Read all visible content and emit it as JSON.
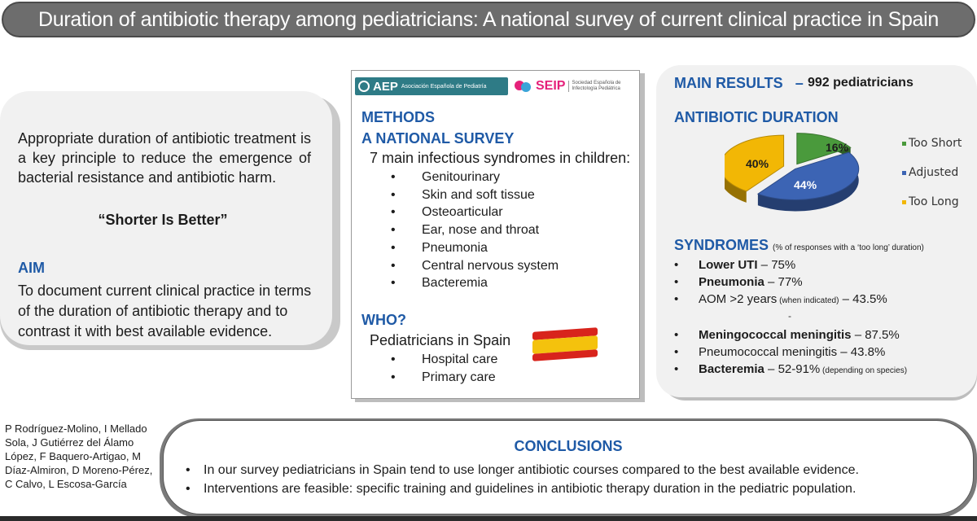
{
  "title": "Duration of antibiotic therapy among pediatricians: A national survey of current clinical practice in Spain",
  "intro": {
    "text": "Appropriate duration of antibiotic treatment is a key principle to reduce the emergence of bacterial resistance and antibiotic harm.",
    "motto": "“Shorter Is Better”",
    "aim_heading": "AIM",
    "aim_text": "To document current clinical practice in terms of the duration of antibiotic therapy and to contrast it with best available evidence."
  },
  "logos": {
    "aep_abbr": "AEP",
    "aep_name": "Asociación Española de Pediatría",
    "seip_abbr": "SEIP",
    "seip_name": "Sociedad Española de Infectología Pediátrica"
  },
  "methods": {
    "heading": "METHODS",
    "subheading": "A NATIONAL SURVEY",
    "intro": "7 main infectious syndromes in children:",
    "syndromes": [
      "Genitourinary",
      "Skin and soft tissue",
      "Osteoarticular",
      "Ear, nose and throat",
      "Pneumonia",
      "Central nervous system",
      "Bacteremia"
    ],
    "who_heading": "WHO?",
    "who_text": "Pediatricians in Spain",
    "who_items": [
      "Hospital care",
      "Primary care"
    ],
    "flag_colors": {
      "red": "#d8241c",
      "yellow": "#f4c20d"
    }
  },
  "results": {
    "heading": "MAIN RESULTS",
    "dash": "–",
    "count": "992 pediatricians",
    "duration_heading": "ANTIBIOTIC DURATION",
    "syndromes_heading": "SYNDROMES",
    "syndromes_note": "(% of responses with a ‘too long’ duration)",
    "syndromes": [
      {
        "name": "Lower UTI",
        "value": " – 75%",
        "note": "",
        "bold": true
      },
      {
        "name": "Pneumonia",
        "value": " – 77%",
        "note": "",
        "bold": true
      },
      {
        "name": "AOM >2 years",
        "value": " – 43.5%",
        "note": " (when indicated)",
        "bold": false
      }
    ],
    "separator": "-",
    "syndromes_2": [
      {
        "name": "Meningococcal meningitis",
        "value": " – 87.5%",
        "note": "",
        "bold": true
      },
      {
        "name": "Pneumococcal meningitis",
        "value": " – 43.8%",
        "note": "",
        "bold": false
      },
      {
        "name": "Bacteremia",
        "value": " – 52-91%",
        "note": " (depending on species)",
        "bold": true
      }
    ]
  },
  "chart_data": {
    "type": "pie",
    "title": "ANTIBIOTIC DURATION",
    "categories": [
      "Too Short",
      "Adjusted",
      "Too Long"
    ],
    "values": [
      16,
      44,
      40
    ],
    "labels": [
      "16%",
      "44%",
      "40%"
    ],
    "colors": [
      "#4a9a3c",
      "#3c64b4",
      "#f2b705"
    ],
    "legend_position": "right"
  },
  "authors": "P Rodríguez-Molino, I Mellado Sola, J Gutiérrez del Álamo López, F Baquero-Artigao, M Díaz-Almiron, D Moreno-Pérez, C Calvo, L Escosa-García",
  "conclusions": {
    "heading": "CONCLUSIONS",
    "items": [
      "In our survey pediatricians in Spain tend to use longer antibiotic courses compared to the best available evidence.",
      "Interventions are feasible: specific training and guidelines in antibiotic therapy duration in the pediatric population."
    ]
  }
}
